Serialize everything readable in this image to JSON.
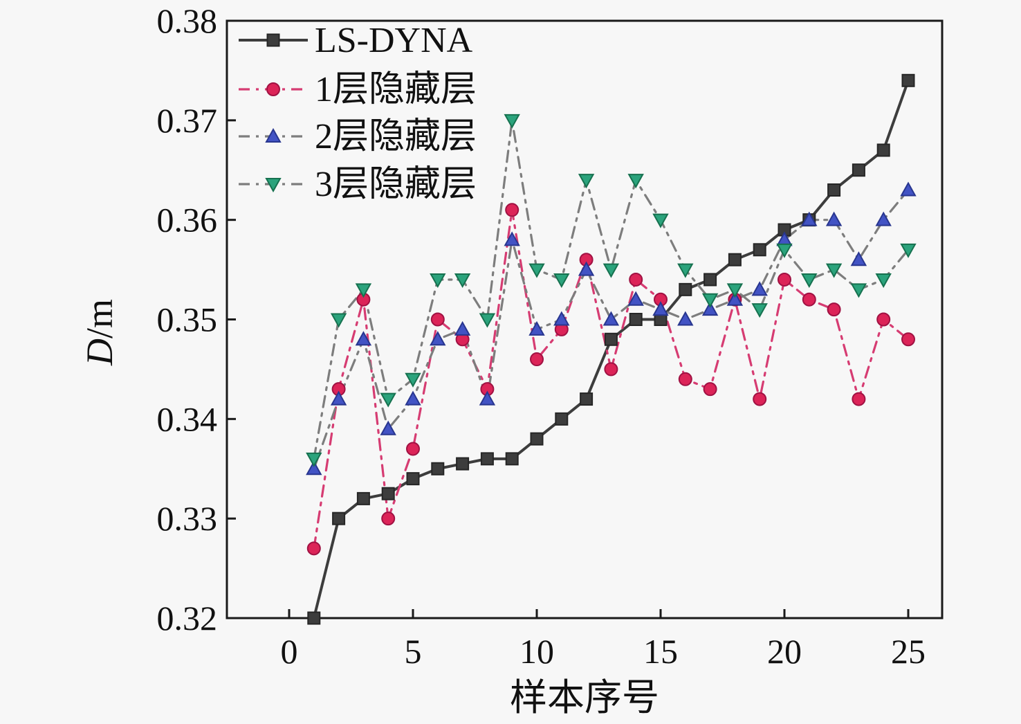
{
  "figure": {
    "background": "#f7f7f7",
    "axis_color": "#1a1a1a",
    "text_color": "#111111"
  },
  "chart_data": {
    "type": "line",
    "title": "",
    "xlabel": "样本序号",
    "ylabel": "D/m",
    "ylabel_parts": [
      "D",
      "/m"
    ],
    "xlim": [
      0,
      25
    ],
    "ylim": [
      0.32,
      0.38
    ],
    "x_ticks": [
      0,
      5,
      10,
      15,
      20,
      25
    ],
    "x_tick_labels": [
      "0",
      "5",
      "10",
      "15",
      "20",
      "25"
    ],
    "y_ticks": [
      0.32,
      0.33,
      0.34,
      0.35,
      0.36,
      0.37,
      0.38
    ],
    "y_tick_labels": [
      "0.32",
      "0.33",
      "0.34",
      "0.35",
      "0.36",
      "0.37",
      "0.38"
    ],
    "grid": false,
    "legend_position": "upper-left",
    "x": [
      1,
      2,
      3,
      4,
      5,
      6,
      7,
      8,
      9,
      10,
      11,
      12,
      13,
      14,
      15,
      16,
      17,
      18,
      19,
      20,
      21,
      22,
      23,
      24,
      25
    ],
    "series": [
      {
        "id": "ls-dyna",
        "name": "LS-DYNA",
        "marker": "square",
        "marker_color": "#3d3d3d",
        "marker_edge": "#262626",
        "line_color": "#3d3d3d",
        "line_style": "solid",
        "values": [
          0.32,
          0.33,
          0.332,
          0.3325,
          0.334,
          0.335,
          0.3355,
          0.336,
          0.336,
          0.338,
          0.34,
          0.342,
          0.348,
          0.35,
          0.35,
          0.353,
          0.354,
          0.356,
          0.357,
          0.359,
          0.36,
          0.363,
          0.365,
          0.367,
          0.374
        ]
      },
      {
        "id": "hidden-1",
        "name": "1层隐藏层",
        "marker": "circle",
        "marker_color": "#dc2458",
        "marker_edge": "#a01243",
        "line_color": "#d63c72",
        "line_style": "dashdot",
        "values": [
          0.327,
          0.343,
          0.352,
          0.33,
          0.337,
          0.35,
          0.348,
          0.343,
          0.361,
          0.346,
          0.349,
          0.356,
          0.345,
          0.354,
          0.352,
          0.344,
          0.343,
          0.352,
          0.342,
          0.354,
          0.352,
          0.351,
          0.342,
          0.35,
          0.348
        ]
      },
      {
        "id": "hidden-2",
        "name": "2层隐藏层",
        "marker": "triangle-up",
        "marker_color": "#4253c4",
        "marker_edge": "#28368f",
        "line_color": "#7d7d7d",
        "line_style": "dashdot",
        "values": [
          0.335,
          0.342,
          0.348,
          0.339,
          0.342,
          0.348,
          0.349,
          0.342,
          0.358,
          0.349,
          0.35,
          0.355,
          0.35,
          0.352,
          0.351,
          0.35,
          0.351,
          0.352,
          0.353,
          0.358,
          0.36,
          0.36,
          0.356,
          0.36,
          0.363
        ]
      },
      {
        "id": "hidden-3",
        "name": "3层隐藏层",
        "marker": "triangle-down",
        "marker_color": "#2ba37c",
        "marker_edge": "#16714f",
        "line_color": "#7d7d7d",
        "line_style": "dashdot",
        "values": [
          0.336,
          0.35,
          0.353,
          0.342,
          0.344,
          0.354,
          0.354,
          0.35,
          0.37,
          0.355,
          0.354,
          0.364,
          0.355,
          0.364,
          0.36,
          0.355,
          0.352,
          0.353,
          0.351,
          0.357,
          0.354,
          0.355,
          0.353,
          0.354,
          0.357
        ]
      }
    ]
  }
}
